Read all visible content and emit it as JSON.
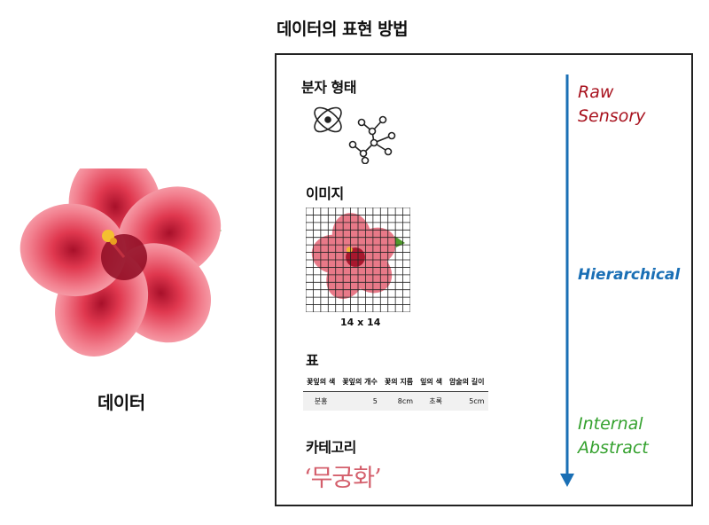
{
  "title": "데이터의 표현 방법",
  "data_label": "데이터",
  "sections": {
    "molecular": {
      "title": "분자 형태"
    },
    "image": {
      "title": "이미지",
      "caption": "14 x 14"
    },
    "table": {
      "title": "표",
      "headers": [
        "꽃잎의 색",
        "꽃잎의 개수",
        "꽃의 지름",
        "잎의 색",
        "암술의 길이"
      ],
      "row": [
        "분홍",
        "5",
        "8cm",
        "초록",
        "5cm"
      ]
    },
    "category": {
      "title": "카테고리",
      "value": "‘무궁화’"
    }
  },
  "scale": {
    "top": {
      "line1": "Raw",
      "line2": "Sensory",
      "color": "#a8121e"
    },
    "middle": {
      "text": "Hierarchical",
      "color": "#1a6fb5"
    },
    "bottom": {
      "line1": "Internal",
      "line2": "Abstract",
      "color": "#34a12e"
    }
  },
  "colors": {
    "arrow": "#1a6fb5",
    "category_text": "#d45f6c",
    "flower_petal": "#f07a8c",
    "flower_center": "#b0102a"
  }
}
